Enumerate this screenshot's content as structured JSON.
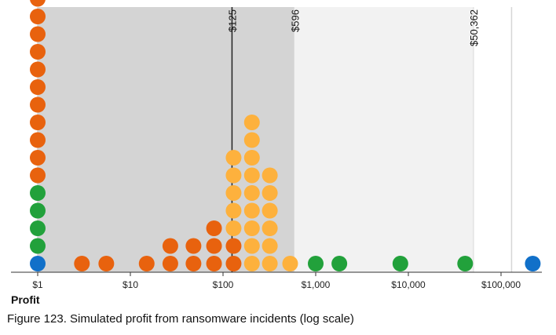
{
  "chart_data": {
    "type": "dot",
    "scale": "log",
    "xlim": [
      1,
      300000
    ],
    "xlabel": "Profit",
    "caption": "Figure 123. Simulated profit from ransomware incidents (log scale)",
    "xticks": [
      {
        "value": 1,
        "label": "$1"
      },
      {
        "value": 10,
        "label": "$10"
      },
      {
        "value": 100,
        "label": "$100"
      },
      {
        "value": 1000,
        "label": "$1,000"
      },
      {
        "value": 10000,
        "label": "$10,000"
      },
      {
        "value": 100000,
        "label": "$100,000"
      }
    ],
    "bands": [
      {
        "from": 1,
        "to": 596,
        "color": "#d4d4d4"
      },
      {
        "from": 596,
        "to": 50362,
        "color": "#f2f2f2"
      }
    ],
    "reference_lines": [
      {
        "value": 1,
        "label": "$1",
        "color": "#d4d4d4"
      },
      {
        "value": 125,
        "label": "$125",
        "color": "#222222"
      },
      {
        "value": 596,
        "label": "$596",
        "color": "#f2f2f2"
      },
      {
        "value": 50362,
        "label": "$50,362",
        "color": "#e3e3e3"
      },
      {
        "value": 130000,
        "label": "",
        "color": "#d6d6d6"
      }
    ],
    "colors": {
      "blue": "#1170c9",
      "green": "#22a13b",
      "orange": "#e8620e",
      "yellow": "#fdb13d"
    },
    "columns": [
      {
        "x": 1,
        "dots": [
          "blue",
          "green",
          "green",
          "green",
          "green",
          "orange",
          "orange",
          "orange",
          "orange",
          "orange",
          "orange",
          "orange",
          "orange",
          "orange",
          "orange",
          "orange",
          "orange"
        ]
      },
      {
        "x": 3,
        "dots": [
          "orange"
        ]
      },
      {
        "x": 5.5,
        "dots": [
          "orange"
        ]
      },
      {
        "x": 15,
        "dots": [
          "orange"
        ]
      },
      {
        "x": 27,
        "dots": [
          "orange",
          "orange"
        ]
      },
      {
        "x": 48,
        "dots": [
          "orange",
          "orange"
        ]
      },
      {
        "x": 80,
        "dots": [
          "orange",
          "orange",
          "orange"
        ]
      },
      {
        "x": 130,
        "dots": [
          "orange",
          "orange",
          "yellow",
          "yellow",
          "yellow",
          "yellow",
          "yellow"
        ]
      },
      {
        "x": 205,
        "dots": [
          "yellow",
          "yellow",
          "yellow",
          "yellow",
          "yellow",
          "yellow",
          "yellow",
          "yellow",
          "yellow"
        ]
      },
      {
        "x": 320,
        "dots": [
          "yellow",
          "yellow",
          "yellow",
          "yellow",
          "yellow",
          "yellow"
        ]
      },
      {
        "x": 530,
        "dots": [
          "yellow"
        ]
      },
      {
        "x": 1000,
        "dots": [
          "green"
        ]
      },
      {
        "x": 1800,
        "dots": [
          "green"
        ]
      },
      {
        "x": 8200,
        "dots": [
          "green"
        ]
      },
      {
        "x": 41000,
        "dots": [
          "green"
        ]
      },
      {
        "x": 220000,
        "dots": [
          "blue"
        ]
      }
    ]
  }
}
